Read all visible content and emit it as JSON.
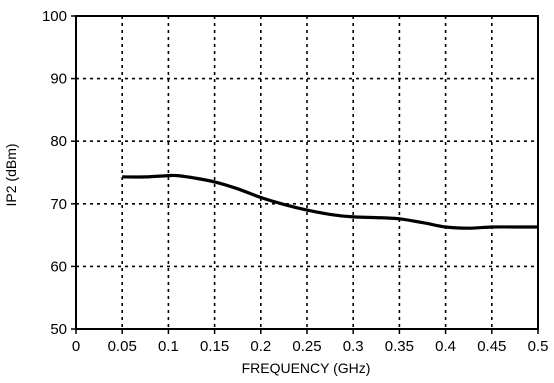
{
  "chart_data": {
    "type": "line",
    "title": "",
    "xlabel": "FREQUENCY (GHz)",
    "ylabel": "IP2  (dBm)",
    "xlim": [
      0,
      0.5
    ],
    "ylim": [
      50,
      100
    ],
    "xticks": [
      "0",
      "0.05",
      "0.1",
      "0.15",
      "0.2",
      "0.25",
      "0.3",
      "0.35",
      "0.4",
      "0.45",
      "0.5"
    ],
    "yticks": [
      "50",
      "60",
      "70",
      "80",
      "90",
      "100"
    ],
    "grid": true,
    "grid_style": "dotted",
    "series": [
      {
        "x": [
          0.05,
          0.075,
          0.1,
          0.11,
          0.125,
          0.15,
          0.175,
          0.2,
          0.225,
          0.25,
          0.275,
          0.3,
          0.325,
          0.35,
          0.375,
          0.4,
          0.425,
          0.45,
          0.475,
          0.5
        ],
        "y": [
          74.3,
          74.3,
          74.5,
          74.5,
          74.2,
          73.5,
          72.4,
          71.0,
          69.9,
          69.0,
          68.3,
          67.9,
          67.8,
          67.6,
          67.0,
          66.3,
          66.1,
          66.3,
          66.3,
          66.3
        ],
        "color": "#000000"
      }
    ]
  }
}
